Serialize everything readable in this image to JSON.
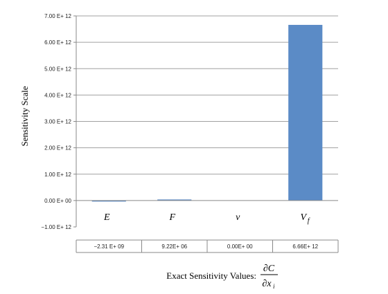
{
  "chart_data": {
    "type": "bar",
    "title": "",
    "ylabel": "Sensitivity Scale",
    "xlabel": "Exact Sensitivity Values:",
    "xlabel_fraction": {
      "numerator": "∂C",
      "denominator": "∂x",
      "denominator_subscript": "i"
    },
    "categories": [
      {
        "label": "E",
        "subscript": ""
      },
      {
        "label": "F",
        "subscript": ""
      },
      {
        "label": "ν",
        "subscript": ""
      },
      {
        "label": "V",
        "subscript": "f"
      }
    ],
    "values": [
      -2310000000.0,
      9220000.0,
      0,
      6660000000000.0
    ],
    "table_values": [
      "−2.31 E+ 09",
      "9.22E+ 06",
      "0.00E+ 00",
      "6.66E+ 12"
    ],
    "ylim": [
      -1000000000000.0,
      7000000000000.0
    ],
    "yticks": [
      {
        "value": 7000000000000.0,
        "label": "7.00 E+ 12"
      },
      {
        "value": 6000000000000.0,
        "label": "6.00 E+ 12"
      },
      {
        "value": 5000000000000.0,
        "label": "5.00 E+ 12"
      },
      {
        "value": 4000000000000.0,
        "label": "4.00 E+ 12"
      },
      {
        "value": 3000000000000.0,
        "label": "3.00 E+ 12"
      },
      {
        "value": 2000000000000.0,
        "label": "2.00 E+ 12"
      },
      {
        "value": 1000000000000.0,
        "label": "1.00 E+ 12"
      },
      {
        "value": 0,
        "label": "0.00 E+ 00"
      },
      {
        "value": -1000000000000.0,
        "label": "−1.00 E+ 12"
      }
    ],
    "grid": true,
    "colors": {
      "bar": "#5b8bc6",
      "grid": "#a0a0a0",
      "axis": "#888888"
    }
  }
}
